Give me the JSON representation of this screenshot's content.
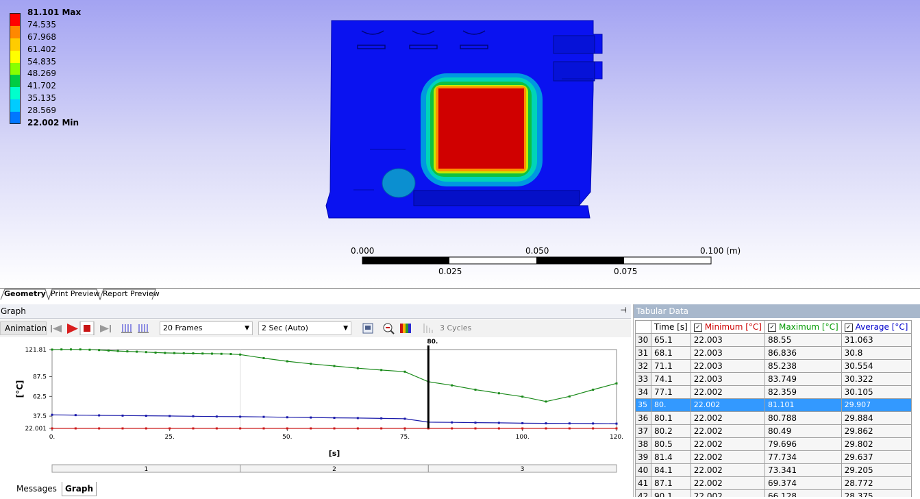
{
  "legend": {
    "items": [
      {
        "label": "81.101 Max",
        "color": "#ff0000",
        "bold": true
      },
      {
        "label": "74.535",
        "color": "#ff8800"
      },
      {
        "label": "67.968",
        "color": "#ffcc00"
      },
      {
        "label": "61.402",
        "color": "#ffff00"
      },
      {
        "label": "54.835",
        "color": "#88ff00"
      },
      {
        "label": "48.269",
        "color": "#00cc44"
      },
      {
        "label": "41.702",
        "color": "#00ffcc"
      },
      {
        "label": "35.135",
        "color": "#00ccff"
      },
      {
        "label": "28.569",
        "color": "#0077ff"
      },
      {
        "label": "22.002 Min",
        "color": "#0000ff",
        "bold": true
      }
    ]
  },
  "scale": {
    "top_labels": [
      "0.000",
      "0.050",
      "0.100 (m)"
    ],
    "bottom_labels": [
      "0.025",
      "0.075"
    ]
  },
  "view_tabs": [
    "Geometry",
    "Print Preview",
    "Report Preview"
  ],
  "graph": {
    "title": "Graph",
    "pin": "⊣",
    "animation_label": "Animation",
    "frames": "20 Frames",
    "duration": "2 Sec (Auto)",
    "cycles": "3 Cycles",
    "bottom_tabs": [
      "Messages",
      "Graph"
    ]
  },
  "chart_data": {
    "type": "line",
    "xlabel": "[s]",
    "ylabel": "[°C]",
    "xlim": [
      0,
      120
    ],
    "ylim": [
      22.001,
      121.81
    ],
    "x_ticks": [
      "0.",
      "25.",
      "50.",
      "75.",
      "100.",
      "120."
    ],
    "y_ticks": [
      "121.81",
      "87.5",
      "62.5",
      "37.5",
      "22.001"
    ],
    "cursor_label": "80.",
    "cursor_x": 80,
    "step_labels": [
      "1",
      "2",
      "3"
    ],
    "series": [
      {
        "color": "#1a8a1a",
        "x": [
          0,
          2,
          4,
          6,
          8,
          10,
          12,
          14,
          16,
          18,
          20,
          22,
          24,
          26,
          28,
          30,
          32,
          34,
          36,
          38,
          40,
          45,
          50,
          55,
          60,
          65,
          70,
          75,
          80,
          85,
          90,
          95,
          100,
          105,
          110,
          115,
          120
        ],
        "values": [
          121.81,
          122.0,
          122.0,
          122.0,
          121.6,
          121.2,
          120.6,
          120.0,
          119.5,
          119.1,
          118.6,
          118.0,
          117.6,
          117.4,
          117.2,
          117.0,
          116.8,
          116.6,
          116.4,
          116.2,
          115.5,
          111.0,
          107.0,
          103.8,
          101.0,
          98.2,
          95.9,
          93.8,
          81.1,
          76.5,
          71.0,
          66.5,
          62.2,
          56.0,
          62.5,
          71.0,
          79.0
        ]
      },
      {
        "color": "#1a1aaa",
        "x": [
          0,
          5,
          10,
          15,
          20,
          25,
          30,
          35,
          40,
          45,
          50,
          55,
          60,
          65,
          70,
          75,
          80,
          85,
          90,
          95,
          100,
          105,
          110,
          115,
          120
        ],
        "values": [
          39.2,
          38.8,
          38.5,
          38.2,
          38.0,
          37.7,
          37.4,
          37.0,
          36.8,
          36.6,
          36.1,
          35.8,
          35.4,
          35.1,
          34.7,
          34.2,
          29.9,
          29.6,
          29.3,
          29.0,
          28.6,
          28.4,
          28.3,
          28.2,
          28.0
        ]
      },
      {
        "color": "#cc1a1a",
        "x": [
          0,
          5,
          10,
          15,
          20,
          25,
          30,
          35,
          40,
          45,
          50,
          55,
          60,
          65,
          70,
          75,
          80,
          85,
          90,
          95,
          100,
          105,
          110,
          115,
          120
        ],
        "values": [
          22.001,
          22.0,
          22.0,
          22.0,
          22.0,
          22.0,
          22.0,
          22.0,
          22.0,
          22.0,
          22.0,
          22.0,
          22.0,
          22.0,
          22.0,
          22.0,
          22.002,
          22.0,
          22.0,
          22.0,
          22.0,
          22.0,
          22.0,
          22.0,
          22.0
        ]
      }
    ]
  },
  "tabular": {
    "title": "Tabular Data",
    "headers": [
      "Time [s]",
      "Minimum [°C]",
      "Maximum [°C]",
      "Average [°C]"
    ],
    "header_colors": [
      "#000000",
      "#cc0000",
      "#009900",
      "#0000cc"
    ],
    "rows": [
      [
        "30",
        "65.1",
        "22.003",
        "88.55",
        "31.063"
      ],
      [
        "31",
        "68.1",
        "22.003",
        "86.836",
        "30.8"
      ],
      [
        "32",
        "71.1",
        "22.003",
        "85.238",
        "30.554"
      ],
      [
        "33",
        "74.1",
        "22.003",
        "83.749",
        "30.322"
      ],
      [
        "34",
        "77.1",
        "22.002",
        "82.359",
        "30.105"
      ],
      [
        "35",
        "80.",
        "22.002",
        "81.101",
        "29.907"
      ],
      [
        "36",
        "80.1",
        "22.002",
        "80.788",
        "29.884"
      ],
      [
        "37",
        "80.2",
        "22.002",
        "80.49",
        "29.862"
      ],
      [
        "38",
        "80.5",
        "22.002",
        "79.696",
        "29.802"
      ],
      [
        "39",
        "81.4",
        "22.002",
        "77.734",
        "29.637"
      ],
      [
        "40",
        "84.1",
        "22.002",
        "73.341",
        "29.205"
      ],
      [
        "41",
        "87.1",
        "22.002",
        "69.374",
        "28.772"
      ],
      [
        "42",
        "90.1",
        "22.002",
        "66.128",
        "28.375"
      ]
    ],
    "selected_row": "35"
  }
}
